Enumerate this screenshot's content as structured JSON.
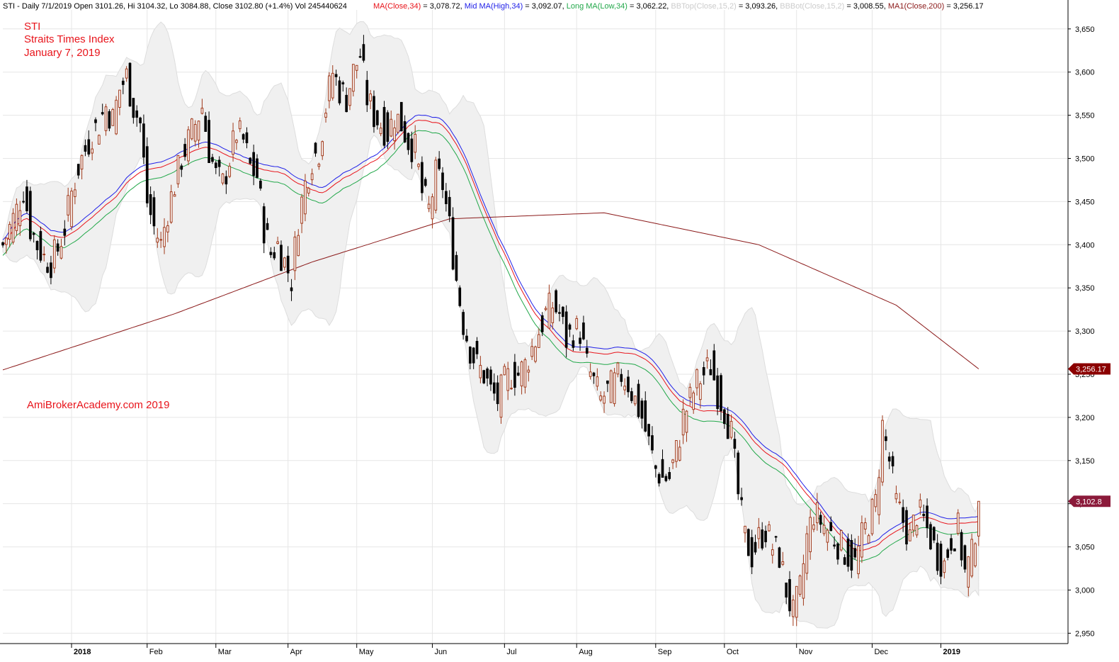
{
  "header": {
    "symbol_line": "STI - Daily 7/1/2019 Open 3101.26, Hi 3104.32, Lo 3084.88, Close 3102.80 (+1.4%) Vol 245440624",
    "indicators": [
      {
        "label": "MA(Close,34)",
        "value": " = 3,078.72,",
        "color": "#e8141b"
      },
      {
        "label": "Mid MA(High,34)",
        "value": " = 3,092.07,",
        "color": "#1f1fe8"
      },
      {
        "label": "Long MA(Low,34)",
        "value": " = 3,062.22,",
        "color": "#22a84a"
      },
      {
        "label": "BBTop(Close,15,2)",
        "value": " = 3,093.26,",
        "color": "#cccccc"
      },
      {
        "label": "BBBot(Close,15,2)",
        "value": " = 3,008.55,",
        "color": "#cccccc"
      },
      {
        "label": "MA1(Close,200)",
        "value": " = 3,256.17",
        "color": "#8b1a1a"
      }
    ]
  },
  "annotations": {
    "symbol": "STI",
    "name": "Straits Times Index",
    "date": "January 7, 2019",
    "watermark": "AmiBrokerAcademy.com  2019"
  },
  "chart_data": {
    "type": "candlestick",
    "y_axis": {
      "ticks": [
        2950,
        3000,
        3050,
        3100,
        3150,
        3200,
        3250,
        3300,
        3350,
        3400,
        3450,
        3500,
        3550,
        3600,
        3650
      ],
      "tick_labels": [
        "2,950",
        "3,000",
        "3,050",
        "3,100",
        "3,150",
        "3,200",
        "3,250",
        "3,300",
        "3,350",
        "3,400",
        "3,450",
        "3,500",
        "3,550",
        "3,600",
        "3,650"
      ],
      "range": [
        2938,
        3672
      ]
    },
    "x_axis": {
      "labels": [
        {
          "text": "2018",
          "bold": true,
          "day": 20
        },
        {
          "text": "Feb",
          "bold": false,
          "day": 42
        },
        {
          "text": "Mar",
          "bold": false,
          "day": 62
        },
        {
          "text": "Apr",
          "bold": false,
          "day": 83
        },
        {
          "text": "May",
          "bold": false,
          "day": 103
        },
        {
          "text": "Jun",
          "bold": false,
          "day": 125
        },
        {
          "text": "Jul",
          "bold": false,
          "day": 146
        },
        {
          "text": "Aug",
          "bold": false,
          "day": 167
        },
        {
          "text": "Sep",
          "bold": false,
          "day": 190
        },
        {
          "text": "Oct",
          "bold": false,
          "day": 210
        },
        {
          "text": "Nov",
          "bold": false,
          "day": 231
        },
        {
          "text": "Dec",
          "bold": false,
          "day": 253
        },
        {
          "text": "2019",
          "bold": true,
          "day": 273
        }
      ],
      "range": [
        0,
        310
      ]
    },
    "price_tags": [
      {
        "label": "3,256.17",
        "value": 3256.17,
        "color": "#8b0000"
      },
      {
        "label": "3,102.8",
        "value": 3102.8,
        "color": "#8b1a3a"
      }
    ],
    "closes": [
      [
        0,
        3400
      ],
      [
        2,
        3420
      ],
      [
        4,
        3440
      ],
      [
        6,
        3465
      ],
      [
        8,
        3420
      ],
      [
        10,
        3400
      ],
      [
        12,
        3385
      ],
      [
        14,
        3380
      ],
      [
        16,
        3395
      ],
      [
        18,
        3420
      ],
      [
        20,
        3460
      ],
      [
        22,
        3490
      ],
      [
        24,
        3510
      ],
      [
        26,
        3530
      ],
      [
        28,
        3540
      ],
      [
        30,
        3560
      ],
      [
        32,
        3545
      ],
      [
        34,
        3580
      ],
      [
        36,
        3595
      ],
      [
        38,
        3560
      ],
      [
        40,
        3540
      ],
      [
        42,
        3450
      ],
      [
        44,
        3420
      ],
      [
        46,
        3400
      ],
      [
        48,
        3440
      ],
      [
        50,
        3470
      ],
      [
        52,
        3500
      ],
      [
        54,
        3520
      ],
      [
        56,
        3540
      ],
      [
        58,
        3560
      ],
      [
        60,
        3510
      ],
      [
        62,
        3480
      ],
      [
        64,
        3470
      ],
      [
        66,
        3500
      ],
      [
        68,
        3530
      ],
      [
        70,
        3520
      ],
      [
        72,
        3490
      ],
      [
        74,
        3480
      ],
      [
        76,
        3420
      ],
      [
        78,
        3390
      ],
      [
        80,
        3400
      ],
      [
        82,
        3380
      ],
      [
        84,
        3360
      ],
      [
        86,
        3430
      ],
      [
        88,
        3470
      ],
      [
        90,
        3500
      ],
      [
        92,
        3510
      ],
      [
        94,
        3560
      ],
      [
        96,
        3600
      ],
      [
        98,
        3580
      ],
      [
        100,
        3570
      ],
      [
        102,
        3600
      ],
      [
        104,
        3620
      ],
      [
        106,
        3570
      ],
      [
        108,
        3550
      ],
      [
        110,
        3540
      ],
      [
        112,
        3530
      ],
      [
        114,
        3550
      ],
      [
        116,
        3540
      ],
      [
        118,
        3520
      ],
      [
        120,
        3510
      ],
      [
        122,
        3460
      ],
      [
        124,
        3440
      ],
      [
        126,
        3480
      ],
      [
        128,
        3470
      ],
      [
        130,
        3420
      ],
      [
        132,
        3360
      ],
      [
        134,
        3310
      ],
      [
        136,
        3280
      ],
      [
        138,
        3260
      ],
      [
        140,
        3250
      ],
      [
        142,
        3230
      ],
      [
        144,
        3220
      ],
      [
        146,
        3240
      ],
      [
        148,
        3250
      ],
      [
        150,
        3250
      ],
      [
        152,
        3260
      ],
      [
        154,
        3280
      ],
      [
        156,
        3300
      ],
      [
        158,
        3320
      ],
      [
        160,
        3330
      ],
      [
        162,
        3320
      ],
      [
        164,
        3290
      ],
      [
        166,
        3300
      ],
      [
        168,
        3300
      ],
      [
        170,
        3260
      ],
      [
        172,
        3240
      ],
      [
        174,
        3220
      ],
      [
        176,
        3230
      ],
      [
        178,
        3240
      ],
      [
        180,
        3250
      ],
      [
        182,
        3240
      ],
      [
        184,
        3220
      ],
      [
        186,
        3200
      ],
      [
        188,
        3170
      ],
      [
        190,
        3140
      ],
      [
        192,
        3130
      ],
      [
        194,
        3130
      ],
      [
        196,
        3160
      ],
      [
        198,
        3200
      ],
      [
        200,
        3220
      ],
      [
        202,
        3240
      ],
      [
        204,
        3250
      ],
      [
        206,
        3260
      ],
      [
        208,
        3230
      ],
      [
        210,
        3210
      ],
      [
        212,
        3180
      ],
      [
        214,
        3110
      ],
      [
        216,
        3060
      ],
      [
        218,
        3040
      ],
      [
        220,
        3060
      ],
      [
        222,
        3070
      ],
      [
        224,
        3050
      ],
      [
        226,
        3040
      ],
      [
        228,
        3000
      ],
      [
        230,
        2970
      ],
      [
        232,
        3000
      ],
      [
        234,
        3060
      ],
      [
        236,
        3090
      ],
      [
        238,
        3080
      ],
      [
        240,
        3070
      ],
      [
        242,
        3060
      ],
      [
        244,
        3050
      ],
      [
        246,
        3040
      ],
      [
        248,
        3030
      ],
      [
        250,
        3060
      ],
      [
        252,
        3080
      ],
      [
        254,
        3100
      ],
      [
        256,
        3190
      ],
      [
        258,
        3150
      ],
      [
        260,
        3100
      ],
      [
        262,
        3080
      ],
      [
        264,
        3060
      ],
      [
        266,
        3090
      ],
      [
        268,
        3080
      ],
      [
        270,
        3060
      ],
      [
        272,
        3040
      ],
      [
        274,
        3030
      ],
      [
        276,
        3060
      ],
      [
        278,
        3070
      ],
      [
        280,
        3020
      ],
      [
        282,
        3040
      ],
      [
        284,
        3102.8
      ]
    ]
  }
}
